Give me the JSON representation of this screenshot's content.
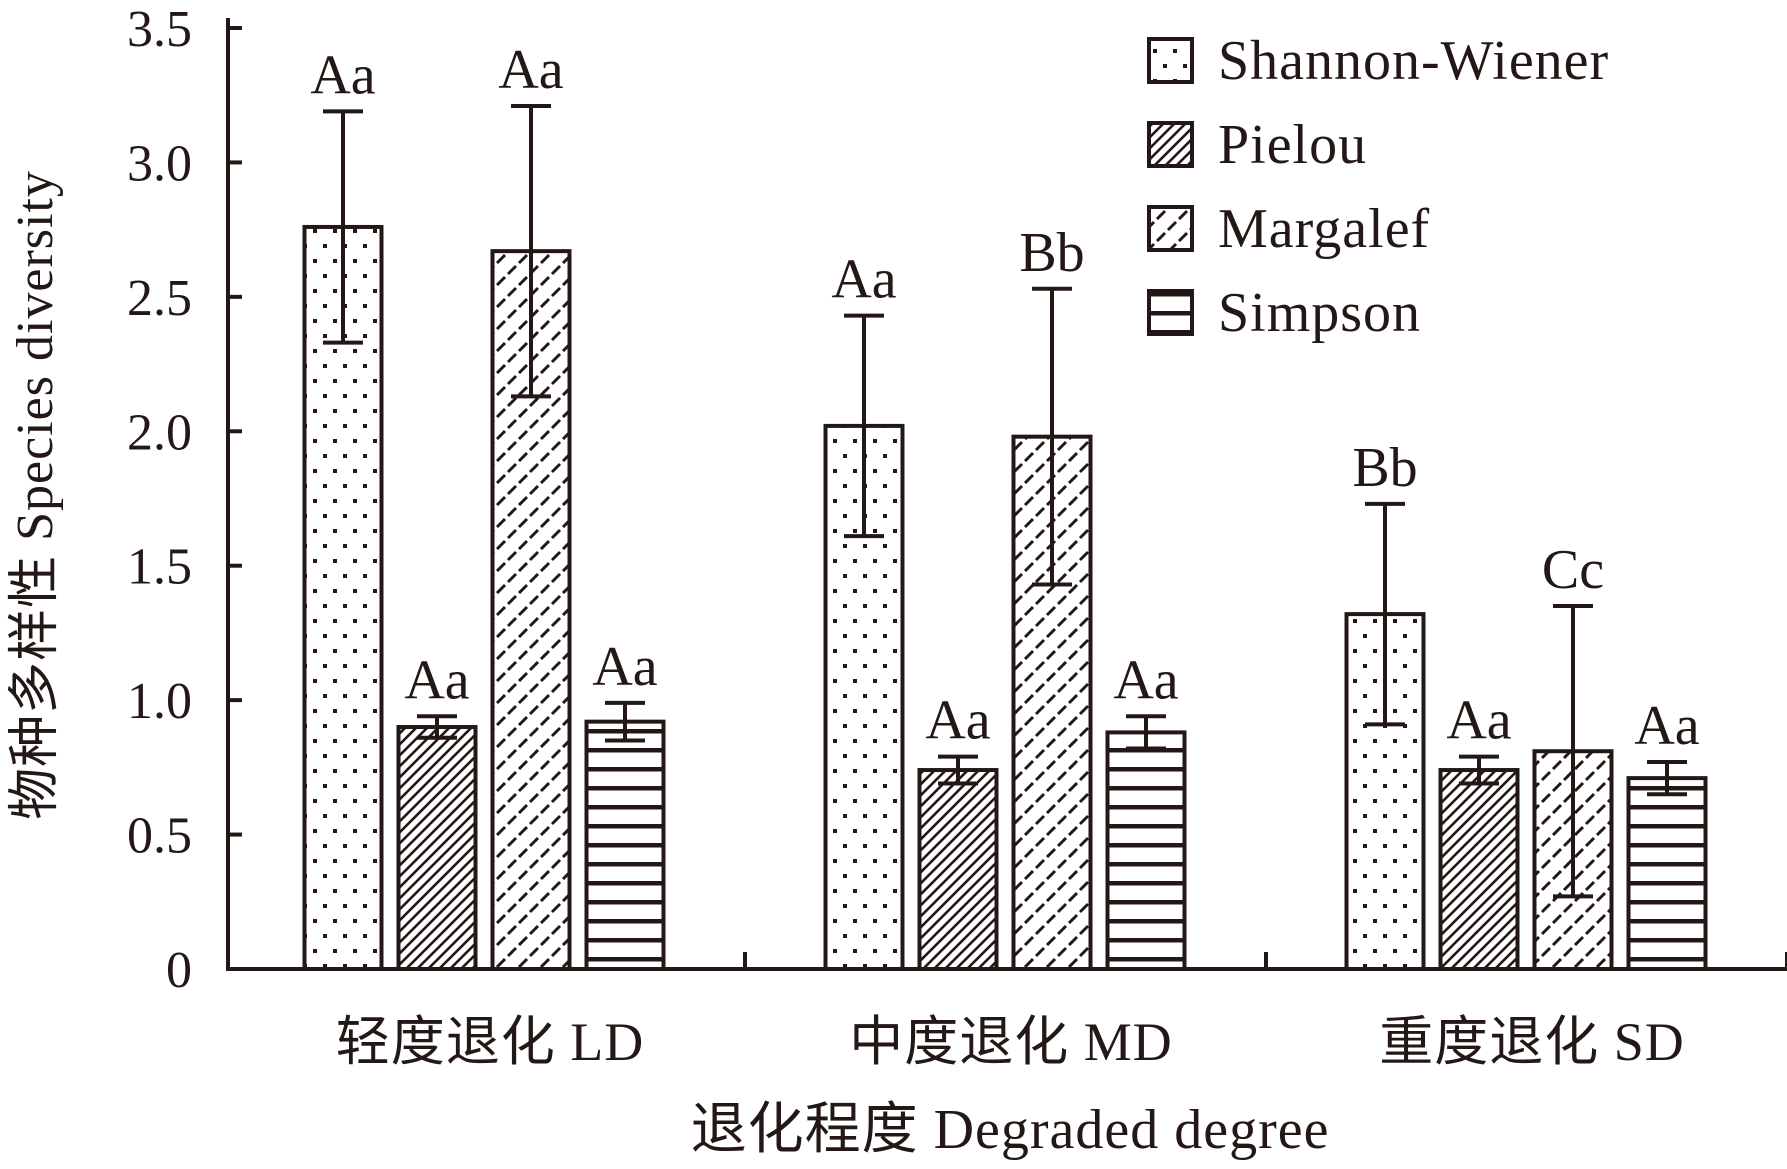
{
  "chart_data": {
    "type": "bar",
    "xlabel": "退化程度 Degraded degree",
    "ylabel": "物种多样性 Species diversity",
    "ylim": [
      0,
      3.5
    ],
    "yticks": [
      {
        "value": 0,
        "label": "0"
      },
      {
        "value": 0.5,
        "label": "0.5"
      },
      {
        "value": 1.0,
        "label": "1.0"
      },
      {
        "value": 1.5,
        "label": "1.5"
      },
      {
        "value": 2.0,
        "label": "2.0"
      },
      {
        "value": 2.5,
        "label": "2.5"
      },
      {
        "value": 3.0,
        "label": "3.0"
      },
      {
        "value": 3.5,
        "label": "3.5"
      }
    ],
    "categories": [
      "轻度退化 LD",
      "中度退化 MD",
      "重度退化 SD"
    ],
    "legend_position": "top-right",
    "grid": false,
    "series": [
      {
        "name": "Shannon-Wiener",
        "pattern": "dots",
        "values": [
          2.76,
          2.02,
          1.32
        ],
        "errors": [
          0.43,
          0.41,
          0.41
        ],
        "labels": [
          "Aa",
          "Aa",
          "Bb"
        ]
      },
      {
        "name": "Pielou",
        "pattern": "diagonal",
        "values": [
          0.9,
          0.74,
          0.74
        ],
        "errors": [
          0.04,
          0.05,
          0.05
        ],
        "labels": [
          "Aa",
          "Aa",
          "Aa"
        ]
      },
      {
        "name": "Margalef",
        "pattern": "dash-diagonal",
        "values": [
          2.67,
          1.98,
          0.81
        ],
        "errors": [
          0.54,
          0.55,
          0.54
        ],
        "labels": [
          "Aa",
          "Bb",
          "Cc"
        ]
      },
      {
        "name": "Simpson",
        "pattern": "horizontal",
        "values": [
          0.92,
          0.88,
          0.71
        ],
        "errors": [
          0.07,
          0.06,
          0.06
        ],
        "labels": [
          "Aa",
          "Aa",
          "Aa"
        ]
      }
    ],
    "colors": {
      "ink": "#231815",
      "background": "#ffffff"
    }
  }
}
